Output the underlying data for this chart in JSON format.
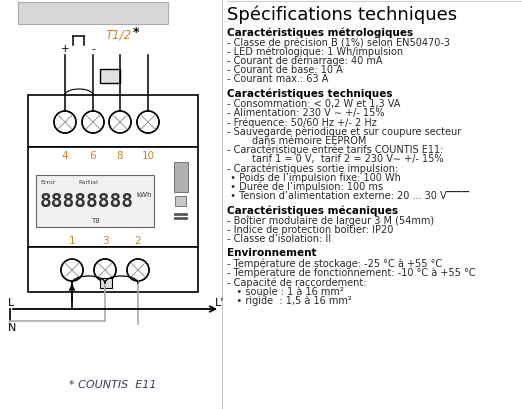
{
  "title": "Spécifications techniques",
  "bg_color": "#ffffff",
  "left_panel": {
    "terminal_labels_top": [
      "4",
      "6",
      "8",
      "10"
    ],
    "terminal_labels_bottom": [
      "1",
      "3",
      "2"
    ],
    "T_label": "T1/2",
    "star_label": "*",
    "plus_label": "+",
    "minus_label": "-",
    "display_text": "88888888",
    "display_unit": "kWh",
    "display_sub": "T8",
    "display_error": "Error",
    "display_partial": "Partial",
    "L_label": "L",
    "N_label": "N",
    "Lprime_label": "L'",
    "countis_label": "* COUNTIS  E11",
    "label_color": "#d4812a",
    "line_color": "#000000",
    "gray_color": "#aaaaaa"
  },
  "right_panel": {
    "title": "Spécifications techniques",
    "title_fs": 13,
    "section1_title": "Caractéristiques métrologiques",
    "section1_items": [
      "- Classe de précision B (1%) selon EN50470-3",
      "- LED métrologique: 1 Wh/impulsion",
      "- Courant de démarrage: 40 mA",
      "- Courant de base: 10 A",
      "- Courant max.: 63 A"
    ],
    "section2_title": "Caractéristiques techniques",
    "section2_items": [
      "- Consommation: < 0,2 W et 1,3 VA",
      "- Alimentation: 230 V ∼ +/- 15%",
      "- Fréquence: 50/60 Hz +/- 2 Hz",
      "- Sauvegarde périodique et sur coupure secteur",
      "        dans mémoire EEPROM",
      "- Caractéristique entrée tarifs COUNTIS E11:",
      "        tarif 1 = 0 V,  tarif 2 = 230 V∼ +/- 15%",
      "- Caractéristiques sortie impulsion:",
      " • Poids de l’impulsion fixe: 100 Wh",
      " • Durée de l’impulsion: 100 ms",
      " • Tension d’alimentation externe: 20 ... 30 V▔▔▔"
    ],
    "section3_title": "Caractéristiques mécaniques",
    "section3_items": [
      "- Boîtier modulaire de largeur 3 M (54mm)",
      "- Indice de protection boîtier: IP20",
      "- Classe d’isolation: II"
    ],
    "section4_title": "Environnement",
    "section4_items": [
      "- Température de stockage: -25 °C à +55 °C",
      "- Température de fonctionnement: -10 °C à +55 °C",
      "- Capacité de raccordement:",
      "   • souple : 1 à 16 mm²",
      "   • rigide  : 1,5 à 16 mm²"
    ],
    "section_title_fs": 7.5,
    "item_fs": 7.0,
    "item_color": "#2a2a2a",
    "section_title_color": "#000000"
  }
}
